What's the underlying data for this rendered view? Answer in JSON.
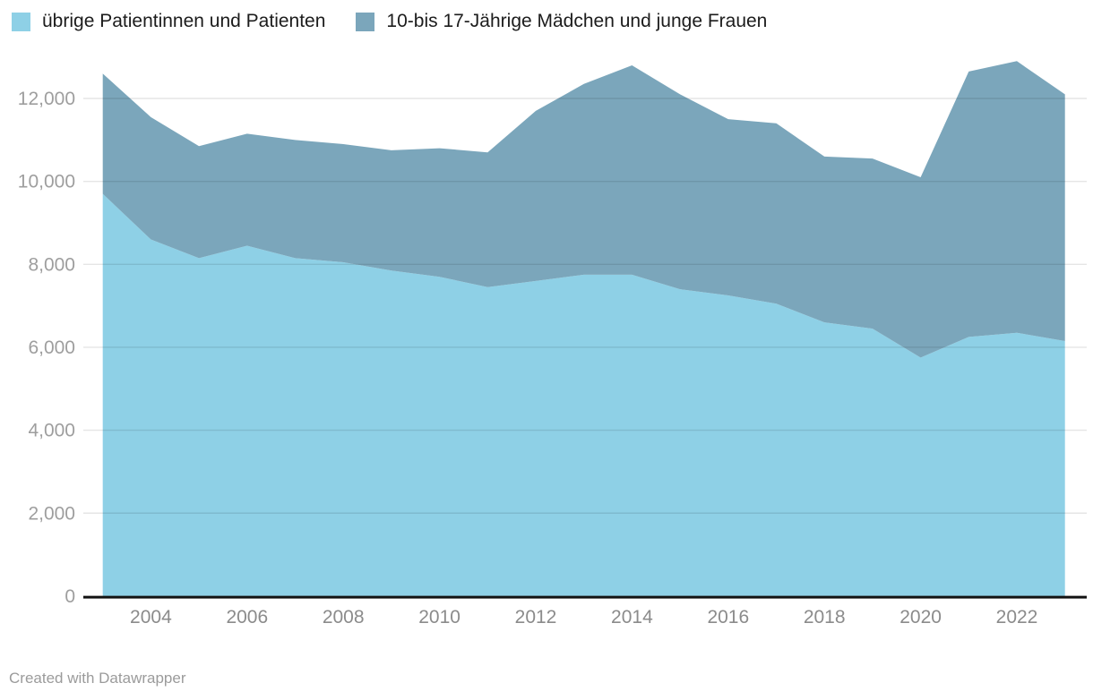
{
  "legend": {
    "items": [
      {
        "label": "übrige Patientinnen und Patienten",
        "color": "#8ed0e6"
      },
      {
        "label": "10-bis 17-Jährige Mädchen und junge Frauen",
        "color": "#7ba6bb"
      }
    ]
  },
  "chart_data": {
    "type": "area",
    "stacked": true,
    "title": "",
    "xlabel": "",
    "ylabel": "",
    "grid": "horizontal",
    "legend_position": "top-left",
    "x": [
      2003,
      2004,
      2005,
      2006,
      2007,
      2008,
      2009,
      2010,
      2011,
      2012,
      2013,
      2014,
      2015,
      2016,
      2017,
      2018,
      2019,
      2020,
      2021,
      2022,
      2023
    ],
    "series": [
      {
        "name": "übrige Patientinnen und Patienten",
        "color": "#8ed0e6",
        "values": [
          9700,
          8600,
          8150,
          8450,
          8150,
          8050,
          7850,
          7700,
          7450,
          7600,
          7750,
          7750,
          7400,
          7250,
          7050,
          6600,
          6450,
          5750,
          6250,
          6350,
          6150
        ]
      },
      {
        "name": "10-bis 17-Jährige Mädchen und junge Frauen",
        "color": "#7ba6bb",
        "values": [
          2900,
          2950,
          2700,
          2700,
          2850,
          2850,
          2900,
          3100,
          3250,
          4100,
          4600,
          5050,
          4700,
          4250,
          4350,
          4000,
          4100,
          4350,
          6400,
          6550,
          5950
        ]
      }
    ],
    "stack_totals": [
      12600,
      11550,
      10850,
      11150,
      11000,
      10900,
      10750,
      10800,
      10700,
      11700,
      12350,
      12800,
      12100,
      11500,
      11400,
      10600,
      10550,
      10100,
      12650,
      12900,
      12100
    ],
    "xlim": [
      2003,
      2023
    ],
    "ylim": [
      0,
      12000
    ],
    "y_axis": {
      "ticks": [
        0,
        2000,
        4000,
        6000,
        8000,
        10000,
        12000
      ],
      "tick_labels": [
        "0",
        "2,000",
        "4,000",
        "6,000",
        "8,000",
        "10,000",
        "12,000"
      ]
    },
    "x_axis": {
      "ticks": [
        2004,
        2006,
        2008,
        2010,
        2012,
        2014,
        2016,
        2018,
        2020,
        2022
      ],
      "tick_labels": [
        "2004",
        "2006",
        "2008",
        "2010",
        "2012",
        "2014",
        "2016",
        "2018",
        "2020",
        "2022"
      ]
    }
  },
  "footer": {
    "credit": "Created with Datawrapper"
  }
}
